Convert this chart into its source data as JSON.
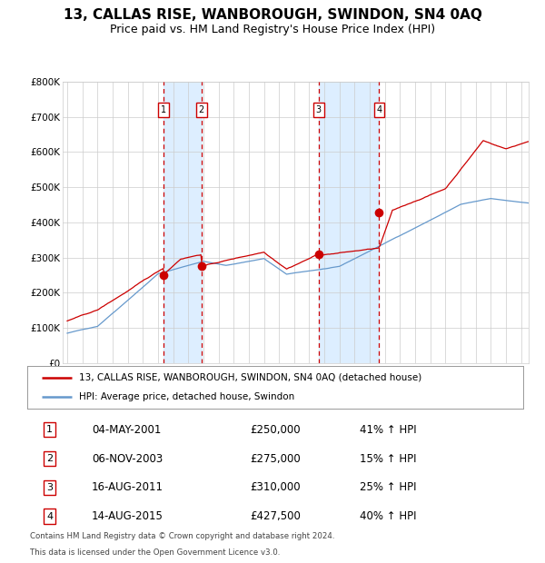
{
  "title": "13, CALLAS RISE, WANBOROUGH, SWINDON, SN4 0AQ",
  "subtitle": "Price paid vs. HM Land Registry's House Price Index (HPI)",
  "legend_label_red": "13, CALLAS RISE, WANBOROUGH, SWINDON, SN4 0AQ (detached house)",
  "legend_label_blue": "HPI: Average price, detached house, Swindon",
  "footer1": "Contains HM Land Registry data © Crown copyright and database right 2024.",
  "footer2": "This data is licensed under the Open Government Licence v3.0.",
  "transactions": [
    {
      "num": 1,
      "date": "04-MAY-2001",
      "price": 250000,
      "pct": "41%"
    },
    {
      "num": 2,
      "date": "06-NOV-2003",
      "price": 275000,
      "pct": "15%"
    },
    {
      "num": 3,
      "date": "16-AUG-2011",
      "price": 310000,
      "pct": "25%"
    },
    {
      "num": 4,
      "date": "14-AUG-2015",
      "price": 427500,
      "pct": "40%"
    }
  ],
  "trans_dates": [
    2001.37,
    2003.87,
    2011.62,
    2015.62
  ],
  "ylim": [
    0,
    800000
  ],
  "yticks": [
    0,
    100000,
    200000,
    300000,
    400000,
    500000,
    600000,
    700000,
    800000
  ],
  "xlim_start": 1994.7,
  "xlim_end": 2025.5,
  "red_color": "#cc0000",
  "blue_color": "#6699cc",
  "shade_color": "#ddeeff",
  "grid_color": "#cccccc",
  "background_color": "#ffffff",
  "title_fontsize": 11,
  "subtitle_fontsize": 9
}
